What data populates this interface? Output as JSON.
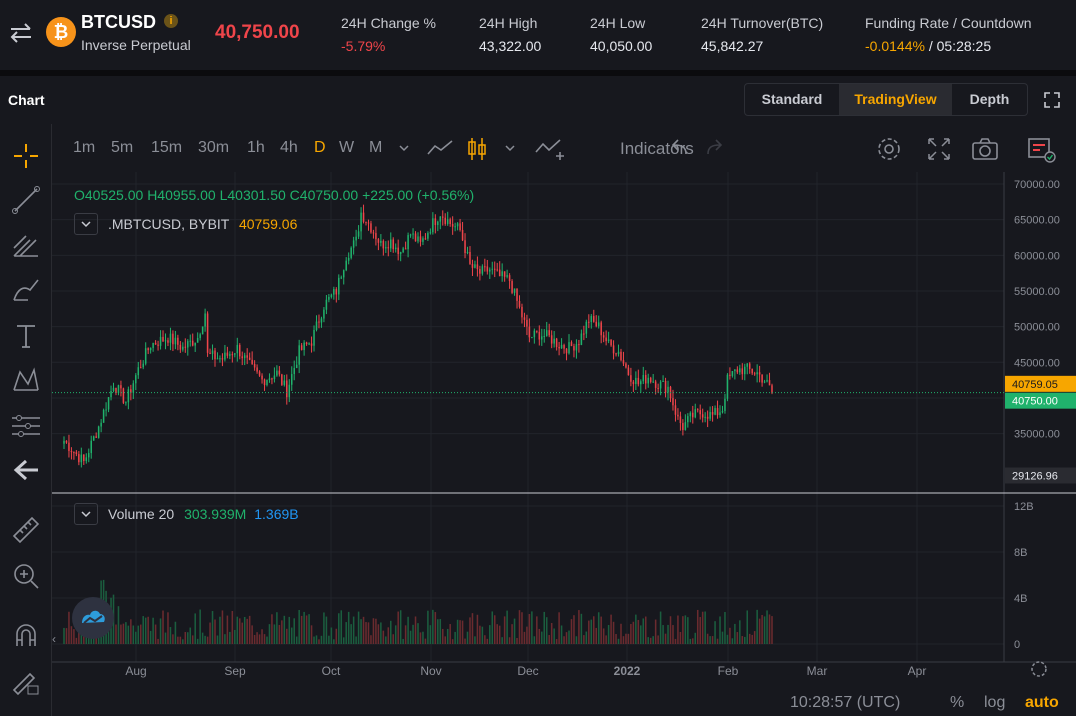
{
  "header": {
    "symbol": "BTCUSD",
    "coin_glyph": "₿",
    "info_glyph": "i",
    "contract_type": "Inverse Perpetual",
    "last_price": "40,750.00",
    "stats": [
      {
        "label": "24H Change %",
        "value": "-5.79%"
      },
      {
        "label": "24H High",
        "value": "43,322.00"
      },
      {
        "label": "24H Low",
        "value": "40,050.00"
      },
      {
        "label": "24H Turnover(BTC)",
        "value": "45,842.27"
      }
    ],
    "funding": {
      "label": "Funding Rate / Countdown",
      "rate": "-0.0144%",
      "sep": "/",
      "countdown": "05:28:25"
    }
  },
  "chart_panel": {
    "title": "Chart",
    "views": [
      "Standard",
      "TradingView",
      "Depth"
    ],
    "active_view": "TradingView"
  },
  "toolbar": {
    "timeframes": [
      "1m",
      "5m",
      "15m",
      "30m",
      "1h",
      "4h",
      "D",
      "W",
      "M"
    ],
    "active_timeframe": "D",
    "indicators_label": "Indicators"
  },
  "legend": {
    "open": "O40525.00",
    "high": "H40955.00",
    "low": "L40301.50",
    "close": "C40750.00",
    "change": "+225.00 (+0.56%)",
    "index_symbol": ".MBTCUSD, BYBIT",
    "index_value": "40759.06",
    "volume_label": "Volume 20",
    "volume_value": "303.939M",
    "volume_ma": "1.369B"
  },
  "price_axis": {
    "ticks": [
      "70000.00",
      "65000.00",
      "60000.00",
      "55000.00",
      "50000.00",
      "45000.00",
      "40000.00",
      "35000.00"
    ],
    "index_tag": "40759.05",
    "last_tag": "40750.00",
    "crosshair_tag": "29126.96"
  },
  "volume_axis": {
    "ticks": [
      "12B",
      "8B",
      "4B",
      "0"
    ]
  },
  "time_axis": {
    "labels": [
      "Aug",
      "Sep",
      "Oct",
      "Nov",
      "Dec",
      "2022",
      "Feb",
      "Mar",
      "Apr"
    ]
  },
  "footer": {
    "clock": "10:28:57 (UTC)",
    "percent": "%",
    "log": "log",
    "auto": "auto"
  },
  "colors": {
    "up": "#20b26c",
    "down": "#ef454a",
    "accent": "#f7a600",
    "bg": "#17181e"
  },
  "chart_data": {
    "type": "candlestick",
    "ylim": [
      29126.96,
      70500
    ],
    "series": [
      {
        "name": "BTCUSD",
        "close_anchors": [
          [
            0,
            34000
          ],
          [
            8,
            31000
          ],
          [
            14,
            36000
          ],
          [
            20,
            42000
          ],
          [
            25,
            39500
          ],
          [
            30,
            44000
          ],
          [
            35,
            47500
          ],
          [
            42,
            48500
          ],
          [
            48,
            47000
          ],
          [
            54,
            48500
          ],
          [
            57,
            52000
          ],
          [
            58,
            46000
          ],
          [
            64,
            45500
          ],
          [
            70,
            47000
          ],
          [
            76,
            44000
          ],
          [
            80,
            42500
          ],
          [
            86,
            43500
          ],
          [
            90,
            41000
          ],
          [
            95,
            46500
          ],
          [
            100,
            48000
          ],
          [
            105,
            53000
          ],
          [
            110,
            55000
          ],
          [
            114,
            60000
          ],
          [
            118,
            62000
          ],
          [
            120,
            66000
          ],
          [
            124,
            64000
          ],
          [
            128,
            61500
          ],
          [
            132,
            62000
          ],
          [
            136,
            60500
          ],
          [
            140,
            63000
          ],
          [
            144,
            61500
          ],
          [
            148,
            64000
          ],
          [
            152,
            66000
          ],
          [
            156,
            64500
          ],
          [
            160,
            63500
          ],
          [
            164,
            58500
          ],
          [
            168,
            57500
          ],
          [
            172,
            58000
          ],
          [
            176,
            57000
          ],
          [
            180,
            56500
          ],
          [
            184,
            52500
          ],
          [
            188,
            48500
          ],
          [
            192,
            49000
          ],
          [
            196,
            48500
          ],
          [
            200,
            47500
          ],
          [
            204,
            47000
          ],
          [
            208,
            48000
          ],
          [
            212,
            51000
          ],
          [
            216,
            50000
          ],
          [
            220,
            47500
          ],
          [
            224,
            46500
          ],
          [
            228,
            43500
          ],
          [
            232,
            42000
          ],
          [
            236,
            43000
          ],
          [
            240,
            42000
          ],
          [
            244,
            41500
          ],
          [
            248,
            37000
          ],
          [
            250,
            36000
          ],
          [
            254,
            37500
          ],
          [
            258,
            38000
          ],
          [
            262,
            37500
          ],
          [
            266,
            38500
          ],
          [
            268,
            42500
          ],
          [
            272,
            44000
          ],
          [
            276,
            44000
          ],
          [
            280,
            43500
          ],
          [
            283,
            42500
          ],
          [
            286,
            40750
          ]
        ]
      }
    ]
  }
}
